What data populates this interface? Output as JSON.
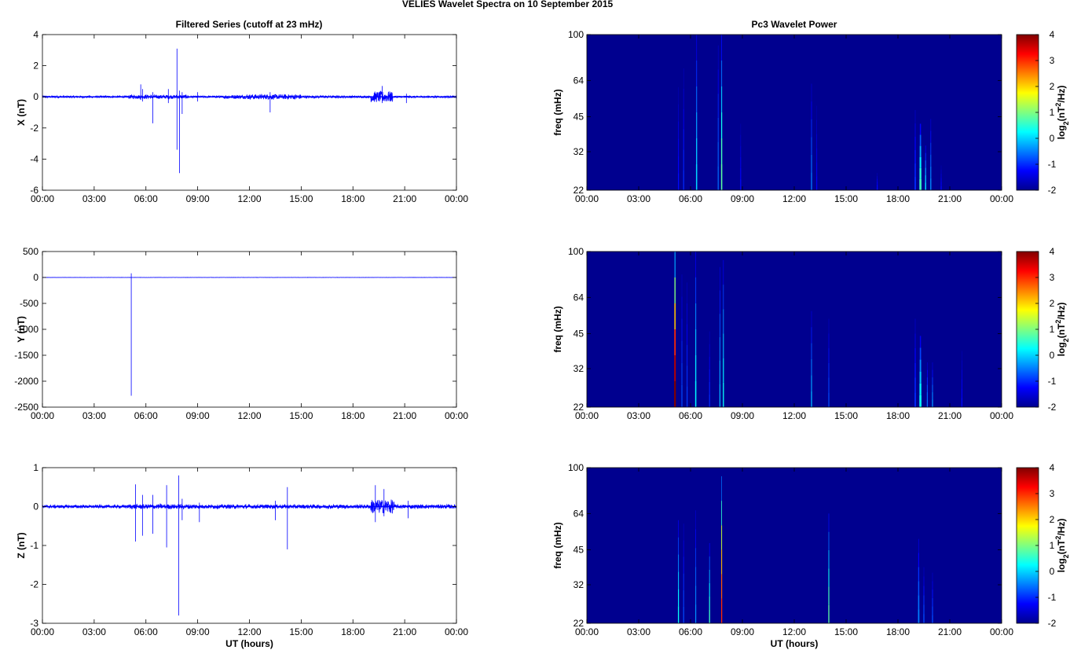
{
  "figure": {
    "title": "VELIES Wavelet Spectra on 10 September 2015",
    "left_column_title": "Filtered Series (cutoff at 23 mHz)",
    "right_column_title": "Pc3 Wavelet Power",
    "xlabel": "UT (hours)"
  },
  "colors": {
    "series_line": "#0000ff",
    "background_power": "#00008f",
    "colormap": [
      "#00008f",
      "#0000ff",
      "#00ffff",
      "#ffff00",
      "#ff0000",
      "#800000"
    ]
  },
  "chart_data": [
    {
      "type": "line",
      "panel": "X",
      "title": "Filtered Series (cutoff at 23 mHz)",
      "ylabel": "X (nT)",
      "ylim": [
        -6,
        4
      ],
      "yticks": [
        4,
        2,
        0,
        -2,
        -4,
        -6
      ],
      "xlim": [
        0,
        24
      ],
      "xticks": [
        "00:00",
        "03:00",
        "06:00",
        "09:00",
        "12:00",
        "15:00",
        "18:00",
        "21:00",
        "00:00"
      ],
      "baseline": 0,
      "noise_envelope": [
        {
          "start": 0,
          "end": 5.0,
          "amp": 0.06
        },
        {
          "start": 5.0,
          "end": 8.5,
          "amp": 0.12
        },
        {
          "start": 8.5,
          "end": 10.5,
          "amp": 0.06
        },
        {
          "start": 10.5,
          "end": 11.8,
          "amp": 0.12
        },
        {
          "start": 11.8,
          "end": 15.0,
          "amp": 0.16
        },
        {
          "start": 15.0,
          "end": 19.0,
          "amp": 0.07
        },
        {
          "start": 19.0,
          "end": 20.3,
          "amp": 0.35
        },
        {
          "start": 20.3,
          "end": 24.0,
          "amp": 0.06
        }
      ],
      "spikes": [
        {
          "t": 5.8,
          "max": 0.5,
          "min": -0.3
        },
        {
          "t": 5.7,
          "max": 0.8,
          "min": -0.2
        },
        {
          "t": 6.4,
          "max": 0.3,
          "min": -1.7
        },
        {
          "t": 7.3,
          "max": 0.5,
          "min": -0.4
        },
        {
          "t": 7.8,
          "max": 3.1,
          "min": -3.4
        },
        {
          "t": 7.95,
          "max": 0.4,
          "min": -4.9
        },
        {
          "t": 8.1,
          "max": 0.3,
          "min": -1.1
        },
        {
          "t": 9.0,
          "max": 0.3,
          "min": -0.3
        },
        {
          "t": 13.2,
          "max": 0.3,
          "min": -1.0
        },
        {
          "t": 19.7,
          "max": 0.7,
          "min": -0.4
        },
        {
          "t": 21.1,
          "max": 0.2,
          "min": -0.4
        }
      ]
    },
    {
      "type": "line",
      "panel": "Y",
      "ylabel": "Y (nT)",
      "ylim": [
        -2500,
        500
      ],
      "yticks": [
        500,
        0,
        -500,
        -1000,
        -1500,
        -2000,
        -2500
      ],
      "xlim": [
        0,
        24
      ],
      "xticks": [
        "00:00",
        "03:00",
        "06:00",
        "09:00",
        "12:00",
        "15:00",
        "18:00",
        "21:00",
        "00:00"
      ],
      "baseline": 0,
      "noise_envelope": [
        {
          "start": 0,
          "end": 24,
          "amp": 2
        }
      ],
      "spikes": [
        {
          "t": 5.15,
          "max": 80,
          "min": -2280
        }
      ]
    },
    {
      "type": "line",
      "panel": "Z",
      "ylabel": "Z (nT)",
      "xlabel": "UT (hours)",
      "ylim": [
        -3,
        1
      ],
      "yticks": [
        1,
        0,
        -1,
        -2,
        -3
      ],
      "xlim": [
        0,
        24
      ],
      "xticks": [
        "00:00",
        "03:00",
        "06:00",
        "09:00",
        "12:00",
        "15:00",
        "18:00",
        "21:00",
        "00:00"
      ],
      "baseline": 0,
      "noise_envelope": [
        {
          "start": 0,
          "end": 5.0,
          "amp": 0.04
        },
        {
          "start": 5.0,
          "end": 9.0,
          "amp": 0.06
        },
        {
          "start": 9.0,
          "end": 13.0,
          "amp": 0.05
        },
        {
          "start": 13.0,
          "end": 19.0,
          "amp": 0.05
        },
        {
          "start": 19.0,
          "end": 20.4,
          "amp": 0.18
        },
        {
          "start": 20.4,
          "end": 24.0,
          "amp": 0.05
        }
      ],
      "spikes": [
        {
          "t": 5.4,
          "max": 0.57,
          "min": -0.9
        },
        {
          "t": 5.8,
          "max": 0.3,
          "min": -0.75
        },
        {
          "t": 6.4,
          "max": 0.3,
          "min": -0.7
        },
        {
          "t": 7.2,
          "max": 0.55,
          "min": -1.05
        },
        {
          "t": 7.9,
          "max": 0.8,
          "min": -2.8
        },
        {
          "t": 8.1,
          "max": 0.2,
          "min": -0.35
        },
        {
          "t": 9.1,
          "max": 0.1,
          "min": -0.4
        },
        {
          "t": 13.5,
          "max": 0.15,
          "min": -0.35
        },
        {
          "t": 14.2,
          "max": 0.5,
          "min": -1.1
        },
        {
          "t": 19.3,
          "max": 0.55,
          "min": -0.4
        },
        {
          "t": 19.8,
          "max": 0.45,
          "min": -0.25
        },
        {
          "t": 21.2,
          "max": 0.15,
          "min": -0.3
        }
      ]
    },
    {
      "type": "heatmap",
      "panel": "X",
      "title": "Pc3 Wavelet Power",
      "ylabel": "freq (mHz)",
      "y_scale": "log",
      "ylim": [
        22,
        100
      ],
      "yticks": [
        100,
        64,
        45,
        32,
        22
      ],
      "xlim": [
        0,
        24
      ],
      "xticks": [
        "00:00",
        "03:00",
        "06:00",
        "09:00",
        "12:00",
        "15:00",
        "18:00",
        "21:00",
        "00:00"
      ],
      "colorbar": {
        "label": "log2(nT2/Hz)",
        "range": [
          -2,
          4
        ],
        "ticks": [
          4,
          3,
          2,
          1,
          0,
          -1,
          -2
        ]
      },
      "background_value": -2,
      "streaks": [
        {
          "t": 5.3,
          "fmax": 60,
          "peak": -1.2,
          "w": 0.05
        },
        {
          "t": 5.6,
          "fmax": 72,
          "peak": -1.0,
          "w": 0.05
        },
        {
          "t": 6.35,
          "fmax": 100,
          "peak": 0.0,
          "w": 0.07
        },
        {
          "t": 7.6,
          "fmax": 90,
          "peak": -0.6,
          "w": 0.05
        },
        {
          "t": 7.8,
          "fmax": 100,
          "peak": 0.8,
          "w": 0.07
        },
        {
          "t": 8.9,
          "fmax": 42,
          "peak": -1.2,
          "w": 0.05
        },
        {
          "t": 13.0,
          "fmax": 62,
          "peak": -0.5,
          "w": 0.06
        },
        {
          "t": 13.3,
          "fmax": 50,
          "peak": -1.3,
          "w": 0.04
        },
        {
          "t": 16.8,
          "fmax": 26,
          "peak": -1.2,
          "w": 0.06
        },
        {
          "t": 19.0,
          "fmax": 48,
          "peak": -1.0,
          "w": 0.08
        },
        {
          "t": 19.3,
          "fmax": 42,
          "peak": 0.6,
          "w": 0.12
        },
        {
          "t": 19.6,
          "fmax": 34,
          "peak": 0.0,
          "w": 0.07
        },
        {
          "t": 19.9,
          "fmax": 44,
          "peak": -0.4,
          "w": 0.06
        },
        {
          "t": 20.5,
          "fmax": 28,
          "peak": -1.2,
          "w": 0.05
        }
      ]
    },
    {
      "type": "heatmap",
      "panel": "Y",
      "ylabel": "freq (mHz)",
      "y_scale": "log",
      "ylim": [
        22,
        100
      ],
      "yticks": [
        100,
        64,
        45,
        32,
        22
      ],
      "xlim": [
        0,
        24
      ],
      "xticks": [
        "00:00",
        "03:00",
        "06:00",
        "09:00",
        "12:00",
        "15:00",
        "18:00",
        "21:00",
        "00:00"
      ],
      "colorbar": {
        "label": "log2(nT2/Hz)",
        "range": [
          -2,
          4
        ],
        "ticks": [
          4,
          3,
          2,
          1,
          0,
          -1,
          -2
        ]
      },
      "background_value": -2,
      "streaks": [
        {
          "t": 5.1,
          "fmax": 100,
          "peak": 4.0,
          "w": 0.1
        },
        {
          "t": 5.5,
          "fmax": 80,
          "peak": -0.8,
          "w": 0.05
        },
        {
          "t": 5.8,
          "fmax": 74,
          "peak": -0.9,
          "w": 0.05
        },
        {
          "t": 6.3,
          "fmax": 100,
          "peak": 0.2,
          "w": 0.07
        },
        {
          "t": 7.1,
          "fmax": 46,
          "peak": -1.0,
          "w": 0.05
        },
        {
          "t": 7.7,
          "fmax": 86,
          "peak": -0.2,
          "w": 0.06
        },
        {
          "t": 7.9,
          "fmax": 92,
          "peak": 0.3,
          "w": 0.06
        },
        {
          "t": 13.0,
          "fmax": 56,
          "peak": -0.2,
          "w": 0.06
        },
        {
          "t": 14.0,
          "fmax": 52,
          "peak": -0.8,
          "w": 0.05
        },
        {
          "t": 19.0,
          "fmax": 52,
          "peak": -1.0,
          "w": 0.08
        },
        {
          "t": 19.3,
          "fmax": 44,
          "peak": 0.3,
          "w": 0.12
        },
        {
          "t": 19.7,
          "fmax": 34,
          "peak": -0.6,
          "w": 0.06
        },
        {
          "t": 20.0,
          "fmax": 34,
          "peak": -0.4,
          "w": 0.06
        },
        {
          "t": 21.7,
          "fmax": 38,
          "peak": -1.2,
          "w": 0.05
        }
      ]
    },
    {
      "type": "heatmap",
      "panel": "Z",
      "ylabel": "freq (mHz)",
      "xlabel": "UT (hours)",
      "y_scale": "log",
      "ylim": [
        22,
        100
      ],
      "yticks": [
        100,
        64,
        45,
        32,
        22
      ],
      "xlim": [
        0,
        24
      ],
      "xticks": [
        "00:00",
        "03:00",
        "06:00",
        "09:00",
        "12:00",
        "15:00",
        "18:00",
        "21:00",
        "00:00"
      ],
      "colorbar": {
        "label": "log2(nT2/Hz)",
        "range": [
          -2,
          4
        ],
        "ticks": [
          4,
          3,
          2,
          1,
          0,
          -1,
          -2
        ]
      },
      "background_value": -2,
      "streaks": [
        {
          "t": 5.3,
          "fmax": 60,
          "peak": 0.3,
          "w": 0.06
        },
        {
          "t": 5.6,
          "fmax": 58,
          "peak": -0.8,
          "w": 0.05
        },
        {
          "t": 6.3,
          "fmax": 66,
          "peak": -0.4,
          "w": 0.05
        },
        {
          "t": 7.1,
          "fmax": 48,
          "peak": 0.6,
          "w": 0.06
        },
        {
          "t": 7.8,
          "fmax": 92,
          "peak": 3.0,
          "w": 0.06
        },
        {
          "t": 14.0,
          "fmax": 64,
          "peak": 0.8,
          "w": 0.06
        },
        {
          "t": 19.2,
          "fmax": 50,
          "peak": -0.5,
          "w": 0.08
        },
        {
          "t": 19.5,
          "fmax": 38,
          "peak": -0.8,
          "w": 0.06
        },
        {
          "t": 20.0,
          "fmax": 36,
          "peak": -0.8,
          "w": 0.06
        }
      ]
    }
  ]
}
